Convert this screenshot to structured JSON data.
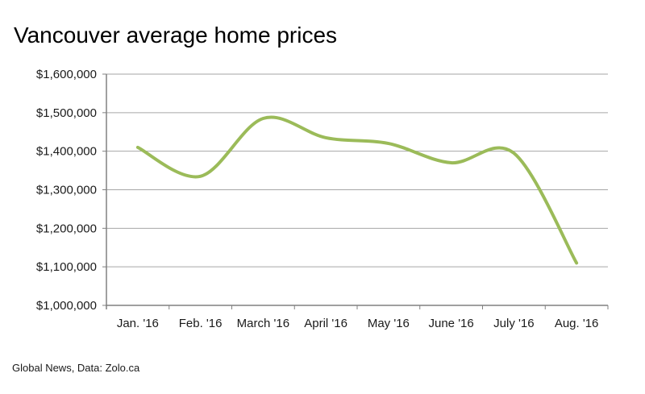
{
  "title": "Vancouver average home prices",
  "footer": "Global News, Data: Zolo.ca",
  "chart_data": {
    "type": "line",
    "title": "Vancouver average home prices",
    "xlabel": "",
    "ylabel": "",
    "categories": [
      "Jan. '16",
      "Feb. '16",
      "March '16",
      "April '16",
      "May '16",
      "June '16",
      "July '16",
      "Aug. '16"
    ],
    "series": [
      {
        "name": "Vancouver average home price",
        "values": [
          1410000,
          1335000,
          1485000,
          1435000,
          1420000,
          1370000,
          1395000,
          1110000
        ]
      }
    ],
    "ylim": [
      1000000,
      1600000
    ],
    "ytick_step": 100000,
    "ytick_labels": [
      "$1,000,000",
      "$1,100,000",
      "$1,200,000",
      "$1,300,000",
      "$1,400,000",
      "$1,500,000",
      "$1,600,000"
    ],
    "smooth": true,
    "grid": "horizontal",
    "legend_position": "none",
    "line_color": "#9BBB59",
    "gridline_color": "#A6A6A6",
    "axis_color": "#808080",
    "label_color": "#1a1a1a"
  }
}
